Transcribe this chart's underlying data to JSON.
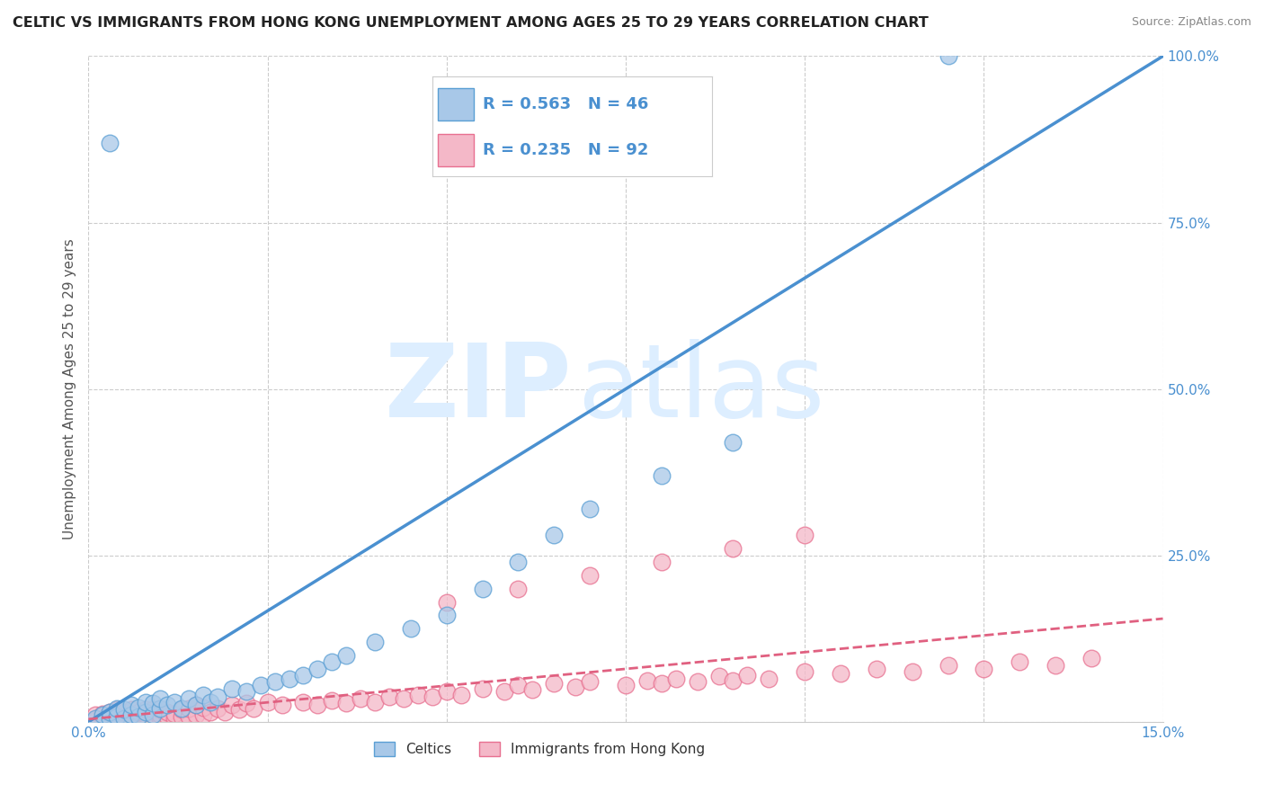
{
  "title": "CELTIC VS IMMIGRANTS FROM HONG KONG UNEMPLOYMENT AMONG AGES 25 TO 29 YEARS CORRELATION CHART",
  "source": "Source: ZipAtlas.com",
  "ylabel": "Unemployment Among Ages 25 to 29 years",
  "xlim": [
    0.0,
    0.15
  ],
  "ylim": [
    0.0,
    1.0
  ],
  "xticks": [
    0.0,
    0.025,
    0.05,
    0.075,
    0.1,
    0.125,
    0.15
  ],
  "xticklabels": [
    "0.0%",
    "",
    "",
    "",
    "",
    "",
    "15.0%"
  ],
  "yticks": [
    0.0,
    0.25,
    0.5,
    0.75,
    1.0
  ],
  "yticklabels": [
    "",
    "25.0%",
    "50.0%",
    "75.0%",
    "100.0%"
  ],
  "celtics_color": "#a8c8e8",
  "hk_color": "#f4b8c8",
  "celtics_edge": "#5a9fd4",
  "hk_edge": "#e87090",
  "celtics_R": 0.563,
  "celtics_N": 46,
  "hk_R": 0.235,
  "hk_N": 92,
  "celtics_line_color": "#4a90d0",
  "hk_line_color": "#e06080",
  "watermark_zip": "ZIP",
  "watermark_atlas": "atlas",
  "watermark_color": "#ddeeff",
  "legend_label1": "Celtics",
  "legend_label2": "Immigrants from Hong Kong",
  "background_color": "#ffffff",
  "grid_color": "#cccccc",
  "tick_color": "#4a90d0",
  "title_color": "#222222",
  "source_color": "#888888",
  "celtics_line_x": [
    0.0,
    0.15
  ],
  "celtics_line_y": [
    0.0,
    1.0
  ],
  "hk_line_x": [
    0.0,
    0.15
  ],
  "hk_line_y": [
    0.004,
    0.155
  ],
  "celtics_x": [
    0.001,
    0.002,
    0.003,
    0.003,
    0.004,
    0.004,
    0.005,
    0.005,
    0.006,
    0.006,
    0.007,
    0.007,
    0.008,
    0.008,
    0.009,
    0.009,
    0.01,
    0.01,
    0.011,
    0.012,
    0.013,
    0.014,
    0.015,
    0.016,
    0.017,
    0.018,
    0.02,
    0.022,
    0.024,
    0.026,
    0.028,
    0.03,
    0.032,
    0.034,
    0.036,
    0.04,
    0.045,
    0.05,
    0.055,
    0.06,
    0.065,
    0.07,
    0.08,
    0.09,
    0.12,
    0.003
  ],
  "celtics_y": [
    0.005,
    0.01,
    0.005,
    0.015,
    0.008,
    0.02,
    0.005,
    0.018,
    0.01,
    0.025,
    0.008,
    0.022,
    0.015,
    0.03,
    0.01,
    0.028,
    0.02,
    0.035,
    0.025,
    0.03,
    0.02,
    0.035,
    0.025,
    0.04,
    0.03,
    0.038,
    0.05,
    0.045,
    0.055,
    0.06,
    0.065,
    0.07,
    0.08,
    0.09,
    0.1,
    0.12,
    0.14,
    0.16,
    0.2,
    0.24,
    0.28,
    0.32,
    0.37,
    0.42,
    1.0,
    0.87
  ],
  "hk_x": [
    0.001,
    0.001,
    0.002,
    0.002,
    0.003,
    0.003,
    0.003,
    0.004,
    0.004,
    0.004,
    0.005,
    0.005,
    0.005,
    0.006,
    0.006,
    0.006,
    0.007,
    0.007,
    0.007,
    0.008,
    0.008,
    0.008,
    0.009,
    0.009,
    0.009,
    0.01,
    0.01,
    0.01,
    0.011,
    0.011,
    0.012,
    0.012,
    0.013,
    0.013,
    0.014,
    0.014,
    0.015,
    0.015,
    0.016,
    0.016,
    0.017,
    0.018,
    0.019,
    0.02,
    0.021,
    0.022,
    0.023,
    0.025,
    0.027,
    0.03,
    0.032,
    0.034,
    0.036,
    0.038,
    0.04,
    0.042,
    0.044,
    0.046,
    0.048,
    0.05,
    0.052,
    0.055,
    0.058,
    0.06,
    0.062,
    0.065,
    0.068,
    0.07,
    0.075,
    0.078,
    0.08,
    0.082,
    0.085,
    0.088,
    0.09,
    0.092,
    0.095,
    0.1,
    0.105,
    0.11,
    0.115,
    0.12,
    0.125,
    0.13,
    0.135,
    0.14,
    0.05,
    0.06,
    0.07,
    0.08,
    0.09,
    0.1
  ],
  "hk_y": [
    0.003,
    0.01,
    0.005,
    0.012,
    0.003,
    0.008,
    0.015,
    0.005,
    0.01,
    0.018,
    0.003,
    0.008,
    0.015,
    0.005,
    0.01,
    0.018,
    0.003,
    0.008,
    0.015,
    0.005,
    0.01,
    0.018,
    0.005,
    0.01,
    0.018,
    0.005,
    0.01,
    0.018,
    0.008,
    0.015,
    0.005,
    0.012,
    0.008,
    0.018,
    0.008,
    0.02,
    0.01,
    0.025,
    0.01,
    0.022,
    0.015,
    0.02,
    0.015,
    0.025,
    0.018,
    0.028,
    0.02,
    0.03,
    0.025,
    0.03,
    0.025,
    0.032,
    0.028,
    0.035,
    0.03,
    0.038,
    0.035,
    0.04,
    0.038,
    0.045,
    0.04,
    0.05,
    0.045,
    0.055,
    0.048,
    0.058,
    0.052,
    0.06,
    0.055,
    0.062,
    0.058,
    0.065,
    0.06,
    0.068,
    0.062,
    0.07,
    0.065,
    0.075,
    0.072,
    0.08,
    0.075,
    0.085,
    0.08,
    0.09,
    0.085,
    0.095,
    0.18,
    0.2,
    0.22,
    0.24,
    0.26,
    0.28
  ]
}
